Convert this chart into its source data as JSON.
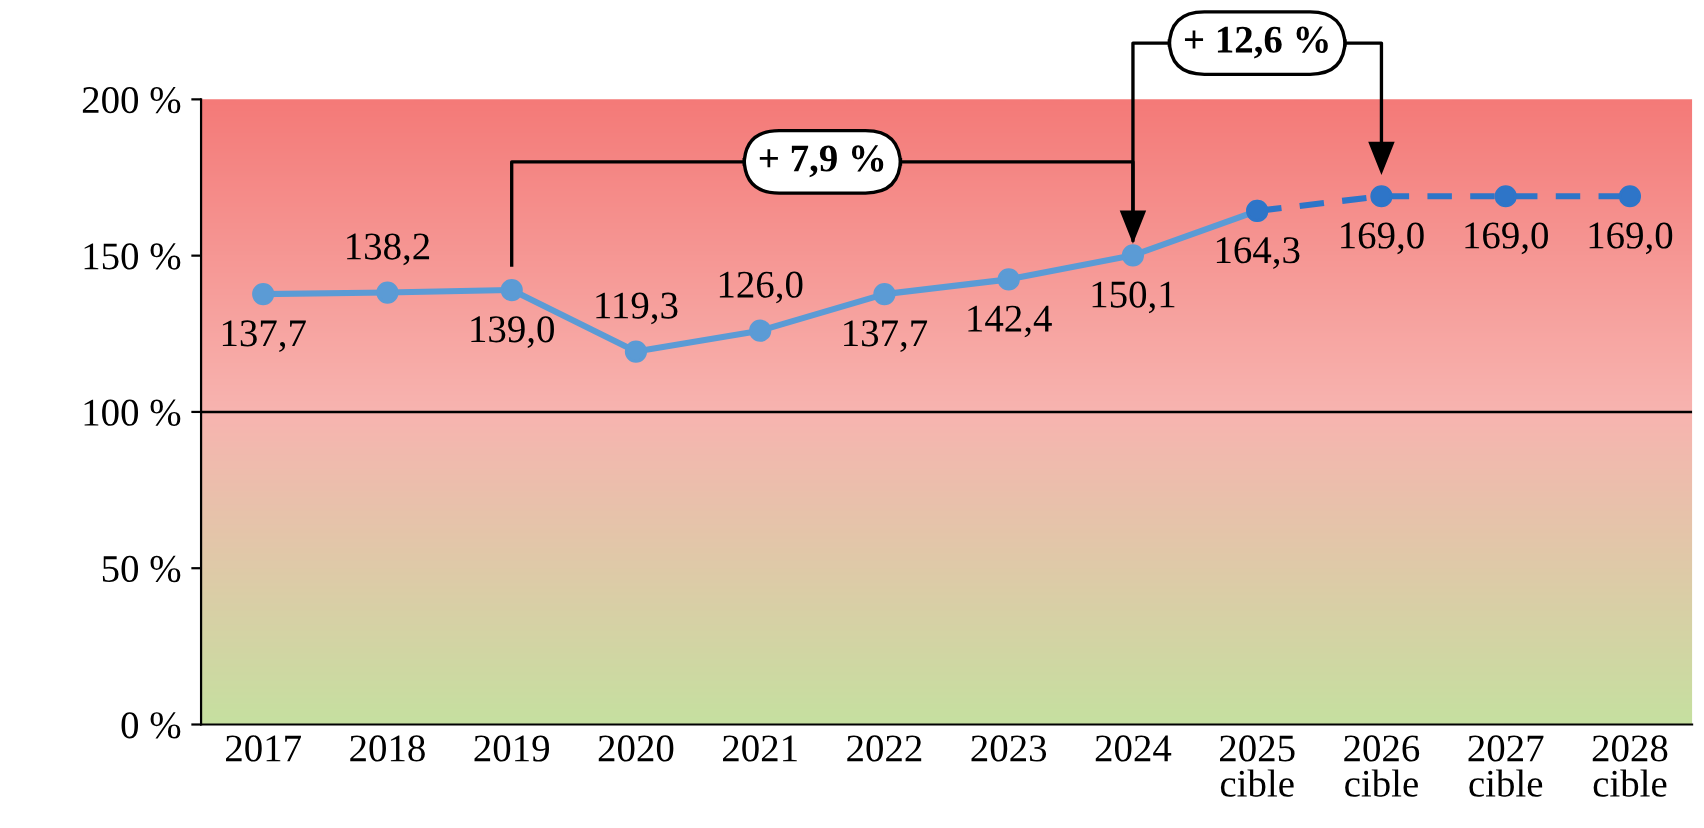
{
  "chart_data": {
    "type": "line",
    "categories": [
      "2017",
      "2018",
      "2019",
      "2020",
      "2021",
      "2022",
      "2023",
      "2024",
      "2025\ncible",
      "2026\ncible",
      "2027\ncible",
      "2028\ncible"
    ],
    "series": [
      {
        "color": "#5b9bd5",
        "line_style": "solid",
        "values": [
          137.7,
          138.2,
          139.0,
          119.3,
          126.0,
          137.7,
          142.4,
          150.1,
          164.3,
          null,
          null,
          null
        ],
        "value_labels": [
          "137,7",
          "138,2",
          "139,0",
          "119,3",
          "126,0",
          "137,7",
          "142,4",
          "150,1",
          "164,3",
          null,
          null,
          null
        ]
      },
      {
        "color": "#2e75c8",
        "line_style": "dashed",
        "values": [
          null,
          null,
          null,
          null,
          null,
          null,
          null,
          null,
          164.3,
          169.0,
          169.0,
          169.0
        ],
        "value_labels": [
          null,
          null,
          null,
          null,
          null,
          null,
          null,
          null,
          null,
          "169,0",
          "169,0",
          "169,0"
        ]
      }
    ],
    "ylim": [
      0,
      200
    ],
    "yticks": [
      {
        "value": 0,
        "label": "0 %"
      },
      {
        "value": 50,
        "label": "50 %"
      },
      {
        "value": 100,
        "label": "100 %"
      },
      {
        "value": 150,
        "label": "150 %"
      },
      {
        "value": 200,
        "label": "200 %"
      }
    ],
    "ref_lines": [
      {
        "axis": "y",
        "value": 100,
        "color": "#000000"
      }
    ],
    "annotations": [
      "+ 7,9 %",
      "+ 12,6 %"
    ],
    "marker": "circle",
    "grid": false,
    "legend": false
  }
}
